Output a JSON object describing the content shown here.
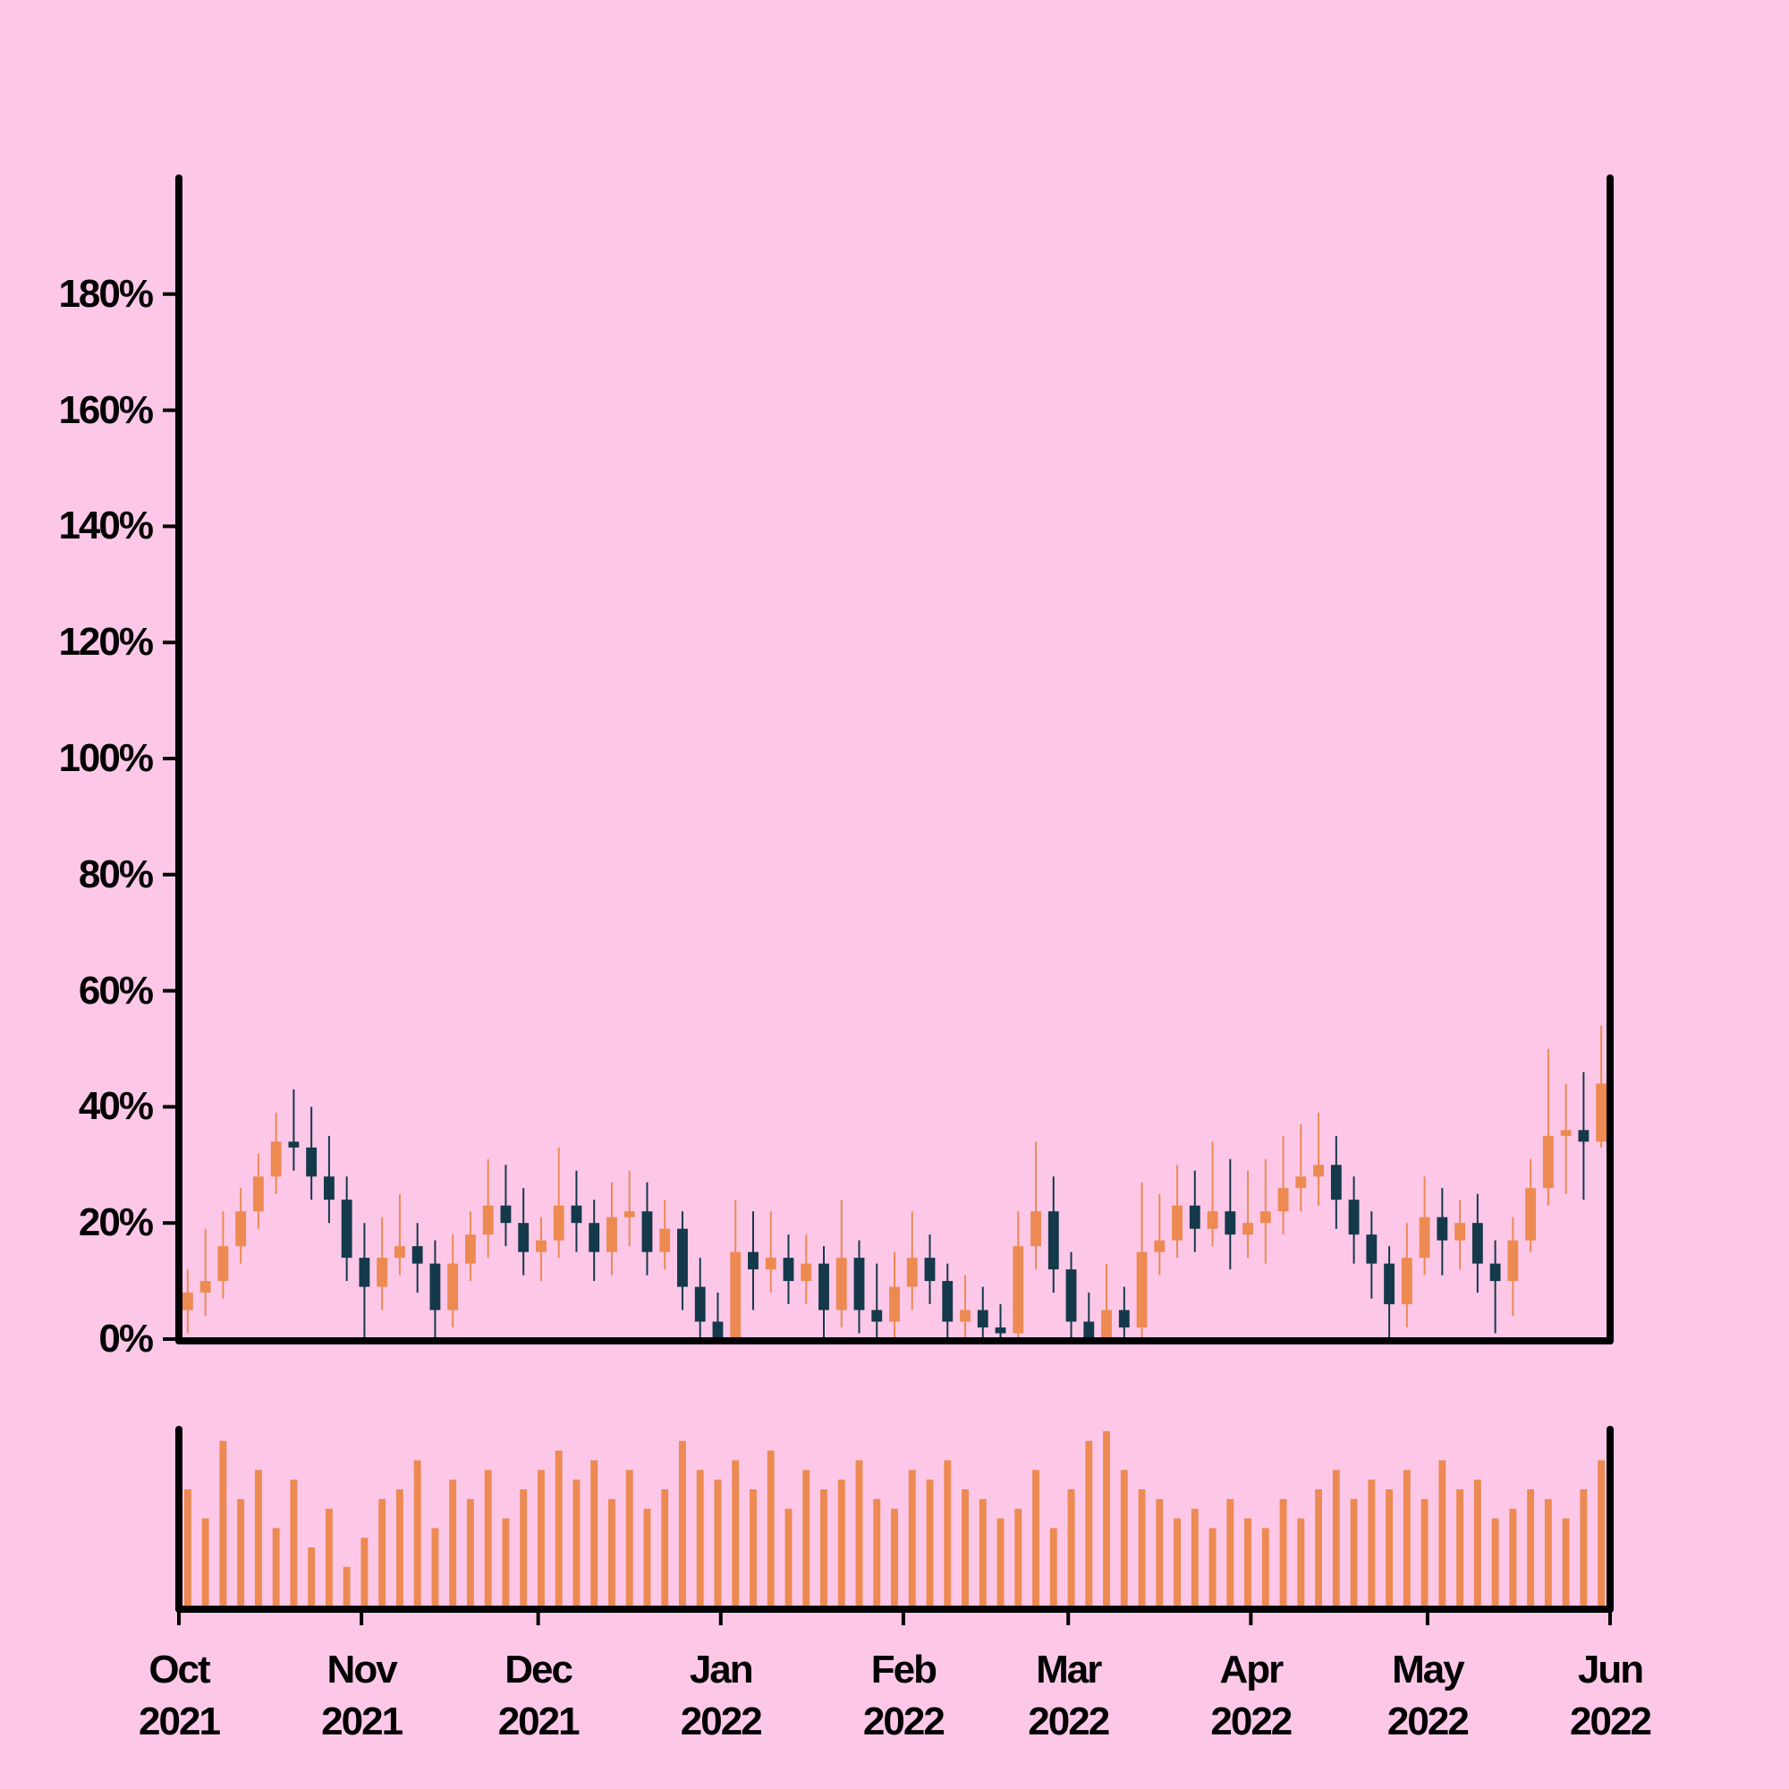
{
  "chart_data": {
    "type": "candlestick",
    "x": [
      "2021-10-01",
      "2021-10-04",
      "2021-10-07",
      "2021-10-10",
      "2021-10-13",
      "2021-10-16",
      "2021-10-19",
      "2021-10-22",
      "2021-10-25",
      "2021-10-28",
      "2021-10-31",
      "2021-11-03",
      "2021-11-06",
      "2021-11-09",
      "2021-11-12",
      "2021-11-15",
      "2021-11-18",
      "2021-11-21",
      "2021-11-24",
      "2021-11-27",
      "2021-11-30",
      "2021-12-03",
      "2021-12-06",
      "2021-12-09",
      "2021-12-12",
      "2021-12-15",
      "2021-12-18",
      "2021-12-21",
      "2021-12-24",
      "2021-12-27",
      "2021-12-30",
      "2022-01-02",
      "2022-01-05",
      "2022-01-08",
      "2022-01-11",
      "2022-01-14",
      "2022-01-17",
      "2022-01-20",
      "2022-01-23",
      "2022-01-26",
      "2022-01-29",
      "2022-02-01",
      "2022-02-04",
      "2022-02-07",
      "2022-02-10",
      "2022-02-13",
      "2022-02-16",
      "2022-02-19",
      "2022-02-22",
      "2022-02-25",
      "2022-02-28",
      "2022-03-03",
      "2022-03-06",
      "2022-03-09",
      "2022-03-12",
      "2022-03-15",
      "2022-03-18",
      "2022-03-21",
      "2022-03-24",
      "2022-03-27",
      "2022-03-30",
      "2022-04-02",
      "2022-04-05",
      "2022-04-08",
      "2022-04-11",
      "2022-04-14",
      "2022-04-17",
      "2022-04-20",
      "2022-04-23",
      "2022-04-26",
      "2022-04-29",
      "2022-05-02",
      "2022-05-05",
      "2022-05-08",
      "2022-05-11",
      "2022-05-14",
      "2022-05-17",
      "2022-05-20",
      "2022-05-23",
      "2022-05-26",
      "2022-05-29"
    ],
    "open": [
      5,
      8,
      10,
      16,
      22,
      28,
      34,
      33,
      28,
      24,
      14,
      9,
      14,
      16,
      13,
      5,
      13,
      18,
      23,
      20,
      15,
      17,
      23,
      20,
      15,
      21,
      22,
      15,
      19,
      9,
      3,
      0,
      15,
      12,
      14,
      10,
      13,
      5,
      14,
      5,
      3,
      9,
      14,
      10,
      3,
      5,
      2,
      1,
      16,
      22,
      12,
      3,
      0,
      5,
      2,
      15,
      17,
      23,
      19,
      22,
      18,
      20,
      22,
      26,
      28,
      30,
      24,
      18,
      13,
      6,
      14,
      21,
      17,
      20,
      13,
      10,
      17,
      26,
      35,
      36,
      34
    ],
    "high": [
      12,
      19,
      22,
      26,
      32,
      39,
      43,
      40,
      35,
      28,
      20,
      21,
      25,
      20,
      17,
      18,
      22,
      31,
      30,
      26,
      21,
      33,
      29,
      24,
      27,
      29,
      27,
      24,
      22,
      14,
      8,
      24,
      22,
      22,
      18,
      18,
      16,
      24,
      17,
      13,
      15,
      22,
      18,
      13,
      11,
      9,
      6,
      22,
      34,
      28,
      15,
      8,
      13,
      9,
      27,
      25,
      30,
      29,
      34,
      31,
      29,
      31,
      35,
      37,
      39,
      35,
      28,
      22,
      16,
      20,
      28,
      26,
      24,
      25,
      17,
      21,
      31,
      50,
      44,
      46,
      54
    ],
    "low": [
      1,
      4,
      7,
      13,
      19,
      25,
      29,
      24,
      20,
      10,
      0,
      5,
      11,
      8,
      0,
      2,
      10,
      14,
      16,
      11,
      10,
      14,
      15,
      10,
      11,
      16,
      11,
      12,
      5,
      0,
      0,
      0,
      5,
      8,
      6,
      6,
      0,
      2,
      1,
      0,
      0,
      5,
      6,
      0,
      0,
      0,
      0,
      0,
      12,
      8,
      0,
      0,
      0,
      0,
      0,
      11,
      14,
      15,
      16,
      12,
      14,
      13,
      18,
      22,
      23,
      19,
      13,
      7,
      0,
      2,
      11,
      11,
      12,
      8,
      1,
      4,
      15,
      23,
      25,
      24,
      33
    ],
    "close": [
      8,
      10,
      16,
      22,
      28,
      34,
      33,
      28,
      24,
      14,
      9,
      14,
      16,
      13,
      5,
      13,
      18,
      23,
      20,
      15,
      17,
      23,
      20,
      15,
      21,
      22,
      15,
      19,
      9,
      3,
      0,
      15,
      12,
      14,
      10,
      13,
      5,
      14,
      5,
      3,
      9,
      14,
      10,
      3,
      5,
      2,
      1,
      16,
      22,
      12,
      3,
      0,
      5,
      2,
      15,
      17,
      23,
      19,
      22,
      18,
      20,
      22,
      26,
      28,
      30,
      24,
      18,
      13,
      6,
      14,
      21,
      17,
      20,
      13,
      10,
      17,
      26,
      35,
      36,
      34,
      44
    ],
    "volume": [
      60,
      45,
      85,
      55,
      70,
      40,
      65,
      30,
      50,
      20,
      35,
      55,
      60,
      75,
      40,
      65,
      55,
      70,
      45,
      60,
      70,
      80,
      65,
      75,
      55,
      70,
      50,
      60,
      85,
      70,
      65,
      75,
      60,
      80,
      50,
      70,
      60,
      65,
      75,
      55,
      50,
      70,
      65,
      75,
      60,
      55,
      45,
      50,
      70,
      40,
      60,
      85,
      90,
      70,
      60,
      55,
      45,
      50,
      40,
      55,
      45,
      40,
      55,
      45,
      60,
      70,
      55,
      65,
      60,
      70,
      55,
      75,
      60,
      65,
      45,
      50,
      60,
      55,
      45,
      60,
      75
    ],
    "up_color": "#ec8a52",
    "down_color": "#14394a",
    "volume_color": "#ec8a52",
    "xlim": [
      "2021-10-01",
      "2022-06-01"
    ],
    "xticks": [
      {
        "value": "2021-10-01",
        "label": "Oct\n2021"
      },
      {
        "value": "2021-11-01",
        "label": "Nov\n2021"
      },
      {
        "value": "2021-12-01",
        "label": "Dec\n2021"
      },
      {
        "value": "2022-01-01",
        "label": "Jan\n2022"
      },
      {
        "value": "2022-02-01",
        "label": "Feb\n2022"
      },
      {
        "value": "2022-03-01",
        "label": "Mar\n2022"
      },
      {
        "value": "2022-04-01",
        "label": "Apr\n2022"
      },
      {
        "value": "2022-05-01",
        "label": "May\n2022"
      },
      {
        "value": "2022-06-01",
        "label": "Jun\n2022"
      }
    ],
    "ylim": [
      0,
      200
    ],
    "yticks": [
      {
        "value": 0,
        "label": "0%"
      },
      {
        "value": 20,
        "label": "20%"
      },
      {
        "value": 40,
        "label": "40%"
      },
      {
        "value": 60,
        "label": "60%"
      },
      {
        "value": 80,
        "label": "80%"
      },
      {
        "value": 100,
        "label": "100%"
      },
      {
        "value": 120,
        "label": "120%"
      },
      {
        "value": 140,
        "label": "140%"
      },
      {
        "value": 160,
        "label": "160%"
      },
      {
        "value": 180,
        "label": "180%"
      }
    ]
  }
}
